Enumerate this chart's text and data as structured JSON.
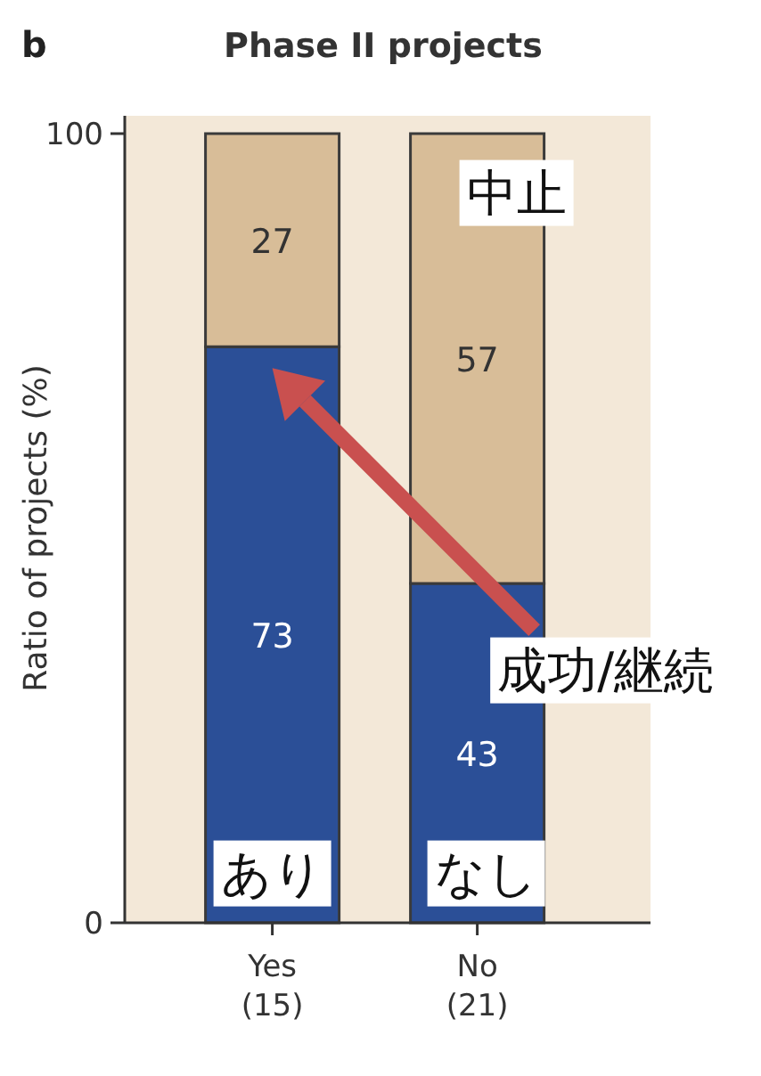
{
  "chart_data": {
    "type": "bar",
    "title": "Phase II projects",
    "ylabel": "Ratio of projects (%)",
    "categories": [
      "Yes\n(15)",
      "No\n(21)"
    ],
    "stacked": true,
    "data_labels": true,
    "series": [
      {
        "color": "#2b4f97",
        "values": [
          73,
          43
        ]
      },
      {
        "color": "#d8bd98",
        "values": [
          27,
          57
        ]
      }
    ],
    "ylim": [
      0,
      100
    ],
    "yticks": [
      0,
      100
    ],
    "annotations": [
      "b",
      "あり",
      "なし",
      "中止",
      "成功/継続"
    ]
  }
}
